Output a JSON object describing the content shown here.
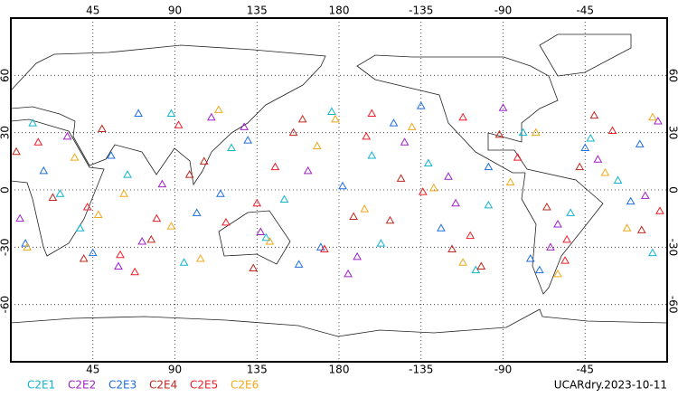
{
  "chart_data": {
    "type": "scatter",
    "xlim": [
      0,
      360
    ],
    "ylim": [
      -90,
      90
    ],
    "xticks": [
      45,
      90,
      135,
      180,
      {
        "value": 225,
        "label": "-135"
      },
      {
        "value": 270,
        "label": "-90"
      },
      {
        "value": 315,
        "label": "-45"
      }
    ],
    "yticks": [
      -60,
      -30,
      0,
      30,
      60
    ],
    "grid": true,
    "caption": "UCARdry.2023-10-11",
    "series": [
      {
        "name": "C2E1",
        "color": "#10b4d0",
        "x": [
          12,
          38,
          64,
          95,
          121,
          150,
          176,
          203,
          229,
          255,
          281,
          307,
          333,
          352,
          27,
          88,
          140,
          198,
          262,
          318
        ],
        "values": [
          35,
          -20,
          8,
          -38,
          22,
          -5,
          41,
          -28,
          14,
          -42,
          30,
          -12,
          5,
          -33,
          -2,
          40,
          -25,
          18,
          -8,
          27
        ]
      },
      {
        "name": "C2E2",
        "color": "#a020c8",
        "x": [
          5,
          31,
          59,
          83,
          110,
          137,
          163,
          190,
          216,
          244,
          270,
          296,
          322,
          348,
          72,
          128,
          185,
          240,
          300,
          355
        ],
        "values": [
          -15,
          28,
          -40,
          3,
          38,
          -22,
          10,
          -35,
          25,
          -7,
          43,
          -30,
          16,
          -3,
          -27,
          33,
          -44,
          7,
          -18,
          36
        ]
      },
      {
        "name": "C2E3",
        "color": "#1e6ee0",
        "x": [
          18,
          45,
          70,
          102,
          130,
          158,
          182,
          210,
          236,
          262,
          290,
          315,
          340,
          8,
          55,
          115,
          170,
          225,
          285,
          345
        ],
        "values": [
          10,
          -33,
          40,
          -12,
          26,
          -39,
          2,
          35,
          -20,
          12,
          -42,
          22,
          -6,
          -28,
          18,
          -2,
          -30,
          44,
          -36,
          24
        ]
      },
      {
        "name": "C2E4",
        "color": "#c0281e",
        "x": [
          23,
          50,
          77,
          106,
          133,
          160,
          188,
          214,
          242,
          268,
          294,
          320,
          346,
          40,
          98,
          155,
          208,
          258,
          312,
          3
        ],
        "values": [
          -4,
          32,
          -26,
          15,
          -41,
          37,
          -14,
          6,
          -31,
          29,
          -9,
          39,
          -21,
          -36,
          8,
          30,
          -16,
          -40,
          12,
          20
        ]
      },
      {
        "name": "C2E5",
        "color": "#f01e28",
        "x": [
          15,
          42,
          68,
          92,
          118,
          145,
          172,
          198,
          226,
          252,
          278,
          304,
          330,
          356,
          80,
          135,
          195,
          248,
          305,
          60
        ],
        "values": [
          25,
          -9,
          -43,
          34,
          -17,
          12,
          -31,
          40,
          -1,
          -24,
          17,
          -37,
          31,
          -11,
          -15,
          -7,
          28,
          38,
          -26,
          -34
        ]
      },
      {
        "name": "C2E6",
        "color": "#f0a818",
        "x": [
          9,
          35,
          62,
          88,
          114,
          142,
          168,
          194,
          220,
          248,
          274,
          300,
          326,
          352,
          48,
          104,
          178,
          232,
          288,
          338
        ],
        "values": [
          -30,
          17,
          -2,
          -19,
          42,
          -27,
          23,
          -10,
          33,
          -38,
          4,
          -44,
          9,
          38,
          -13,
          -36,
          37,
          1,
          30,
          -20
        ]
      }
    ]
  }
}
